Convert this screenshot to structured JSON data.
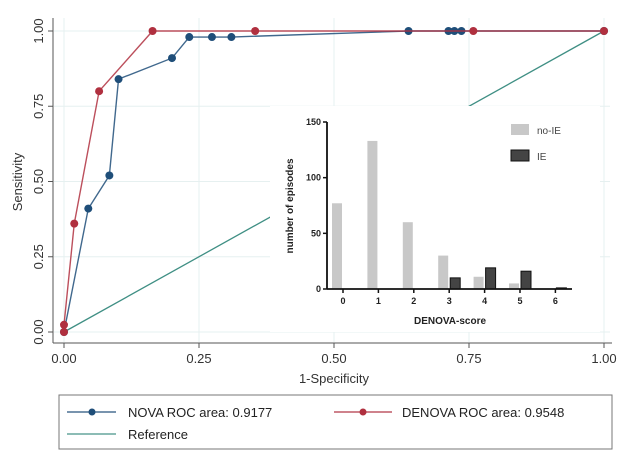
{
  "chart_data": [
    {
      "type": "line",
      "title": "",
      "xlabel": "1-Specificity",
      "ylabel": "Sensitivity",
      "xlim": [
        0,
        1
      ],
      "ylim": [
        0,
        1
      ],
      "x_ticks": [
        "0.00",
        "0.25",
        "0.50",
        "0.75",
        "1.00"
      ],
      "y_ticks": [
        "0.00",
        "0.25",
        "0.50",
        "0.75",
        "1.00"
      ],
      "grid": true,
      "legend_position": "bottom",
      "series": [
        {
          "name": "NOVA ROC area: 0.9177",
          "color": "#1f4e79",
          "markers": true,
          "points": [
            [
              0,
              0
            ],
            [
              0.045,
              0.41
            ],
            [
              0.084,
              0.52
            ],
            [
              0.101,
              0.84
            ],
            [
              0.2,
              0.91
            ],
            [
              0.232,
              0.98
            ],
            [
              0.274,
              0.98
            ],
            [
              0.31,
              0.98
            ],
            [
              0.638,
              1.0
            ],
            [
              0.712,
              1.0
            ],
            [
              0.723,
              1.0
            ],
            [
              0.736,
              1.0
            ],
            [
              1.0,
              1.0
            ]
          ]
        },
        {
          "name": "DENOVA ROC area: 0.9548",
          "color": "#b0303f",
          "markers": true,
          "points": [
            [
              0,
              0
            ],
            [
              0,
              0.024
            ],
            [
              0.019,
              0.36
            ],
            [
              0.065,
              0.8
            ],
            [
              0.164,
              1.0
            ],
            [
              0.354,
              1.0
            ],
            [
              0.758,
              1.0
            ],
            [
              1.0,
              1.0
            ]
          ]
        },
        {
          "name": "Reference",
          "color": "#3f8f84",
          "markers": false,
          "points": [
            [
              0,
              0
            ],
            [
              1,
              1
            ]
          ]
        }
      ]
    },
    {
      "type": "bar",
      "title": "",
      "xlabel": "DENOVA-score",
      "ylabel": "number of episodes",
      "categories": [
        "0",
        "1",
        "2",
        "3",
        "4",
        "5",
        "6"
      ],
      "ylim": [
        0,
        150
      ],
      "y_ticks": [
        "0",
        "50",
        "100",
        "150"
      ],
      "legend_position": "top-right",
      "series": [
        {
          "name": "no-IE",
          "color": "#c8c8c8",
          "values": [
            77,
            133,
            60,
            30,
            11,
            5,
            0
          ]
        },
        {
          "name": "IE",
          "color": "#444444",
          "values": [
            0,
            0,
            0,
            10,
            19,
            16,
            1
          ]
        }
      ]
    }
  ],
  "legend": {
    "items": [
      {
        "label": "NOVA ROC area: 0.9177",
        "color": "#1f4e79",
        "marker": true
      },
      {
        "label": "DENOVA ROC area: 0.9548",
        "color": "#b0303f",
        "marker": true
      },
      {
        "label": "Reference",
        "color": "#3f8f84",
        "marker": false
      }
    ]
  }
}
